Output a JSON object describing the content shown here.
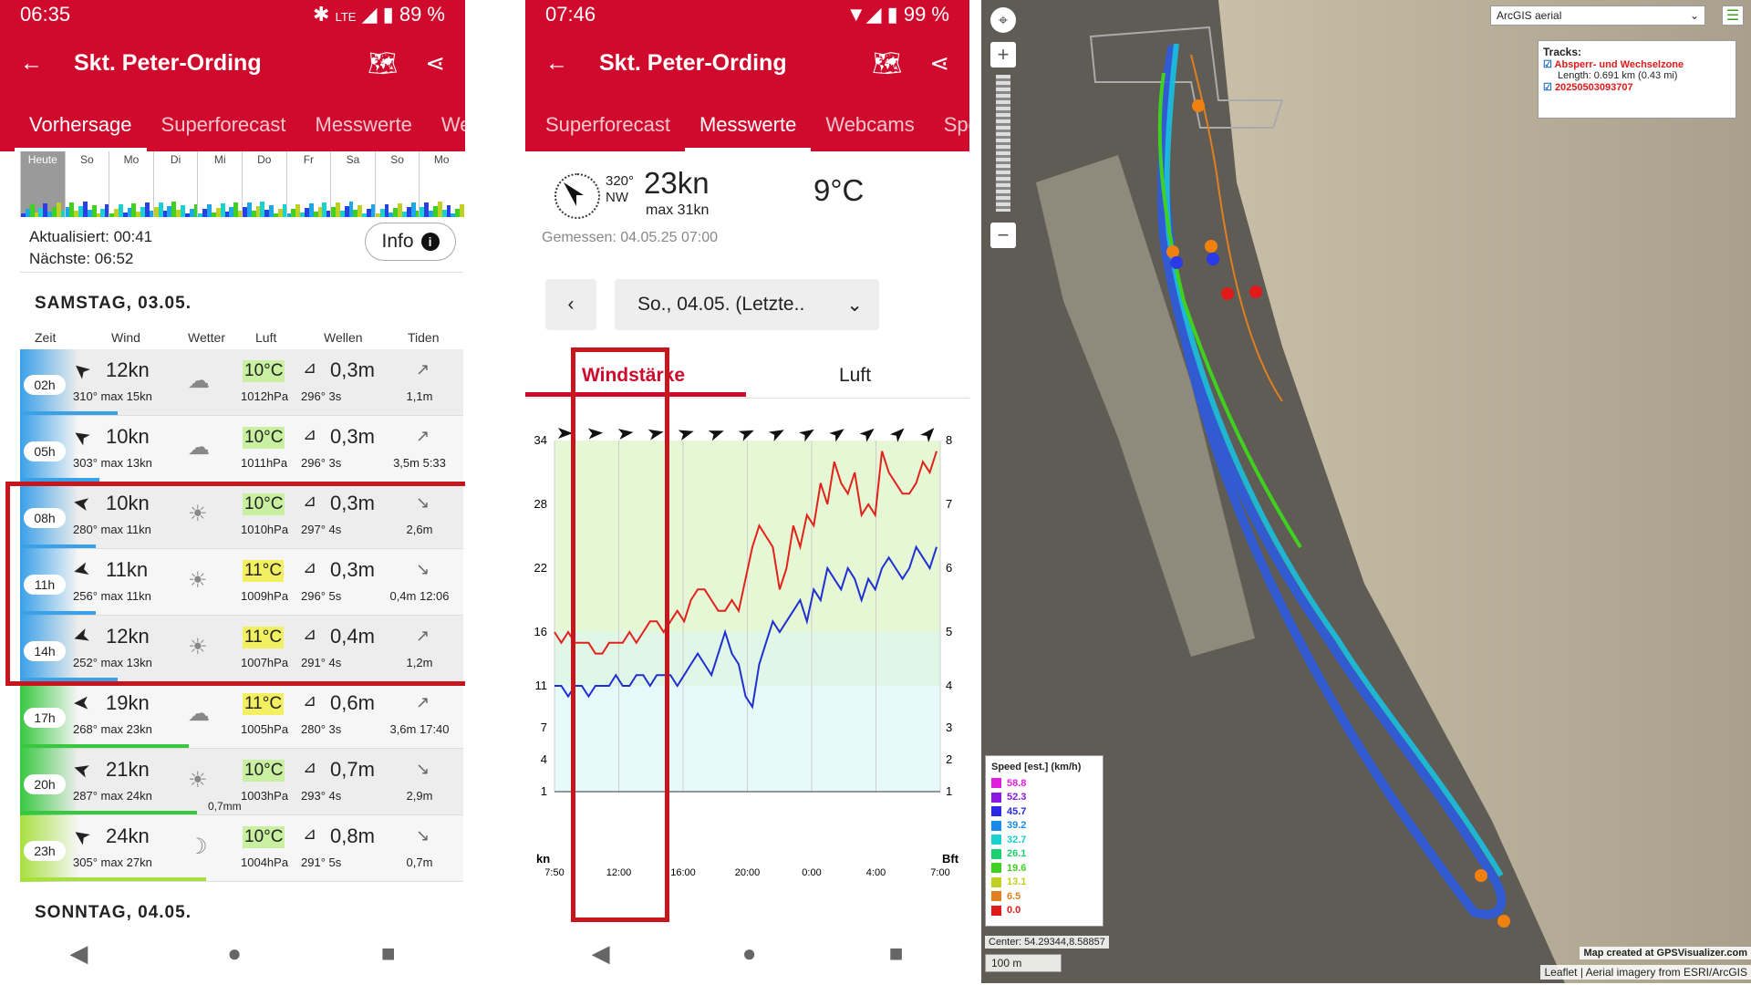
{
  "p1": {
    "status": {
      "time": "06:35",
      "net": "LTE",
      "battery": "89 %"
    },
    "title": "Skt. Peter-Ording",
    "tabs": [
      "Vorhersage",
      "Superforecast",
      "Messwerte",
      "We"
    ],
    "days": [
      "Heute",
      "So",
      "Mo",
      "Di",
      "Mi",
      "Do",
      "Fr",
      "Sa",
      "So",
      "Mo"
    ],
    "updated": "Aktualisiert: 00:41",
    "next": "Nächste: 06:52",
    "info": "Info",
    "day1": "SAMSTAG, 03.05.",
    "day2": "SONNTAG, 04.05.",
    "cols": {
      "zeit": "Zeit",
      "wind": "Wind",
      "wetter": "Wetter",
      "luft": "Luft",
      "wellen": "Wellen",
      "tiden": "Tiden"
    },
    "rows": [
      {
        "time": "02h",
        "kn": "12kn",
        "deg": "310°",
        "max": "max 15kn",
        "temp": "10°C",
        "hpa": "1012hPa",
        "wave": "0,3m",
        "wdir": "296°",
        "wper": "3s",
        "tide": "1,1m",
        "wx": "☁",
        "tarr": "↗",
        "tempcolor": "#c8f0a0",
        "band": "#3aa0e8",
        "bar": 0.22
      },
      {
        "time": "05h",
        "kn": "10kn",
        "deg": "303°",
        "max": "max 13kn",
        "temp": "10°C",
        "hpa": "1011hPa",
        "wave": "0,3m",
        "wdir": "296°",
        "wper": "3s",
        "tide": "3,5m 5:33",
        "wx": "☁",
        "tarr": "↗",
        "tempcolor": "#c8f0a0",
        "band": "#3aa0e8",
        "bar": 0.18
      },
      {
        "time": "08h",
        "kn": "10kn",
        "deg": "280°",
        "max": "max 11kn",
        "temp": "10°C",
        "hpa": "1010hPa",
        "wave": "0,3m",
        "wdir": "297°",
        "wper": "4s",
        "tide": "2,6m",
        "wx": "☀",
        "tarr": "↘",
        "tempcolor": "#c8f0a0",
        "band": "#3aa0e8",
        "bar": 0.17
      },
      {
        "time": "11h",
        "kn": "11kn",
        "deg": "256°",
        "max": "max 11kn",
        "temp": "11°C",
        "hpa": "1009hPa",
        "wave": "0,3m",
        "wdir": "296°",
        "wper": "5s",
        "tide": "0,4m 12:06",
        "wx": "☀",
        "tarr": "↘",
        "tempcolor": "#f2f060",
        "band": "#3aa0e8",
        "bar": 0.17
      },
      {
        "time": "14h",
        "kn": "12kn",
        "deg": "252°",
        "max": "max 13kn",
        "temp": "11°C",
        "hpa": "1007hPa",
        "wave": "0,4m",
        "wdir": "291°",
        "wper": "4s",
        "tide": "1,2m",
        "wx": "☀",
        "tarr": "↗",
        "tempcolor": "#f2f060",
        "band": "#3aa0e8",
        "bar": 0.22
      },
      {
        "time": "17h",
        "kn": "19kn",
        "deg": "268°",
        "max": "max 23kn",
        "temp": "11°C",
        "hpa": "1005hPa",
        "wave": "0,6m",
        "wdir": "280°",
        "wper": "3s",
        "tide": "3,6m 17:40",
        "wx": "☁",
        "tarr": "↗",
        "tempcolor": "#f2f060",
        "band": "#38c840",
        "bar": 0.38
      },
      {
        "time": "20h",
        "kn": "21kn",
        "deg": "287°",
        "max": "max 24kn",
        "temp": "10°C",
        "hpa": "1003hPa",
        "wave": "0,7m",
        "wdir": "293°",
        "wper": "4s",
        "tide": "2,9m",
        "wx": "☀",
        "tarr": "↘",
        "tempcolor": "#c8f0a0",
        "band": "#38c840",
        "bar": 0.4,
        "rain": "0,7mm"
      },
      {
        "time": "23h",
        "kn": "24kn",
        "deg": "305°",
        "max": "max 27kn",
        "temp": "10°C",
        "hpa": "1004hPa",
        "wave": "0,8m",
        "wdir": "291°",
        "wper": "5s",
        "tide": "0,7m",
        "wx": "☽",
        "tarr": "↘",
        "tempcolor": "#c8f0a0",
        "band": "#a8e040",
        "bar": 0.42
      }
    ]
  },
  "p2": {
    "status": {
      "time": "07:46",
      "battery": "99 %"
    },
    "title": "Skt. Peter-Ording",
    "tabs": [
      "Superforecast",
      "Messwerte",
      "Webcams",
      "Spo"
    ],
    "deg": "320°",
    "dirname": "NW",
    "kn": "23kn",
    "max": "max 31kn",
    "temp": "9°C",
    "measured": "Gemessen: 04.05.25 07:00",
    "select": "So., 04.05. (Letzte..",
    "subtabs": [
      "Windstärke",
      "Luft"
    ],
    "chart_data": {
      "type": "line",
      "yleft_ticks": [
        "34",
        "28",
        "22",
        "16",
        "11",
        "7",
        "4",
        "1"
      ],
      "yright_ticks": [
        "8",
        "7",
        "6",
        "5",
        "4",
        "3",
        "2",
        "1"
      ],
      "yleft_label": "kn",
      "yright_label": "Bft",
      "x_ticks": [
        "7:50",
        "12:00",
        "16:00",
        "20:00",
        "0:00",
        "4:00",
        "7:00"
      ],
      "series": [
        {
          "color": "#e0221a",
          "values": [
            16,
            15,
            16,
            15,
            15,
            15,
            14,
            14,
            15,
            15,
            15,
            16,
            15,
            16,
            17,
            17,
            16,
            17,
            18,
            17,
            19,
            20,
            20,
            19,
            18,
            18,
            19,
            18,
            21,
            24,
            26,
            25,
            24,
            20,
            22,
            26,
            24,
            27,
            26,
            30,
            28,
            32,
            30,
            29,
            31,
            27,
            28,
            27,
            33,
            31,
            30,
            29,
            29,
            30,
            32,
            31,
            33
          ]
        },
        {
          "color": "#1f2fd0",
          "values": [
            11,
            11,
            10,
            11,
            11,
            10,
            11,
            11,
            11,
            12,
            11,
            11,
            12,
            12,
            11,
            12,
            12,
            12,
            11,
            12,
            13,
            14,
            13,
            12,
            14,
            16,
            14,
            13,
            10,
            9,
            13,
            15,
            17,
            16,
            17,
            18,
            19,
            17,
            20,
            19,
            22,
            21,
            20,
            22,
            21,
            19,
            21,
            20,
            22,
            23,
            22,
            21,
            22,
            24,
            23,
            22,
            24
          ]
        }
      ]
    }
  },
  "p3": {
    "layer": "ArcGIS aerial",
    "tracks_title": "Tracks:",
    "track1": "Absperr- und Wechselzone",
    "track1_len": "Length: 0.691 km (0.43 mi)",
    "track2": "20250503093707",
    "legend_title": "Speed [est.] (km/h)",
    "legend": [
      {
        "v": "58.8",
        "c": "#e01ee0"
      },
      {
        "v": "52.3",
        "c": "#8a18e0"
      },
      {
        "v": "45.7",
        "c": "#2a2ae8"
      },
      {
        "v": "39.2",
        "c": "#1a8ae8"
      },
      {
        "v": "32.7",
        "c": "#1ad0d0"
      },
      {
        "v": "26.1",
        "c": "#1ad070"
      },
      {
        "v": "19.6",
        "c": "#40d020"
      },
      {
        "v": "13.1",
        "c": "#c0d020"
      },
      {
        "v": "6.5",
        "c": "#e08020"
      },
      {
        "v": "0.0",
        "c": "#e01a1a"
      }
    ],
    "center": "Center: 54.29344,8.58857",
    "scale": "100 m",
    "credit": "Map created at GPSVisualizer.com",
    "attribution": "Leaflet | Aerial imagery from ESRI/ArcGIS"
  }
}
